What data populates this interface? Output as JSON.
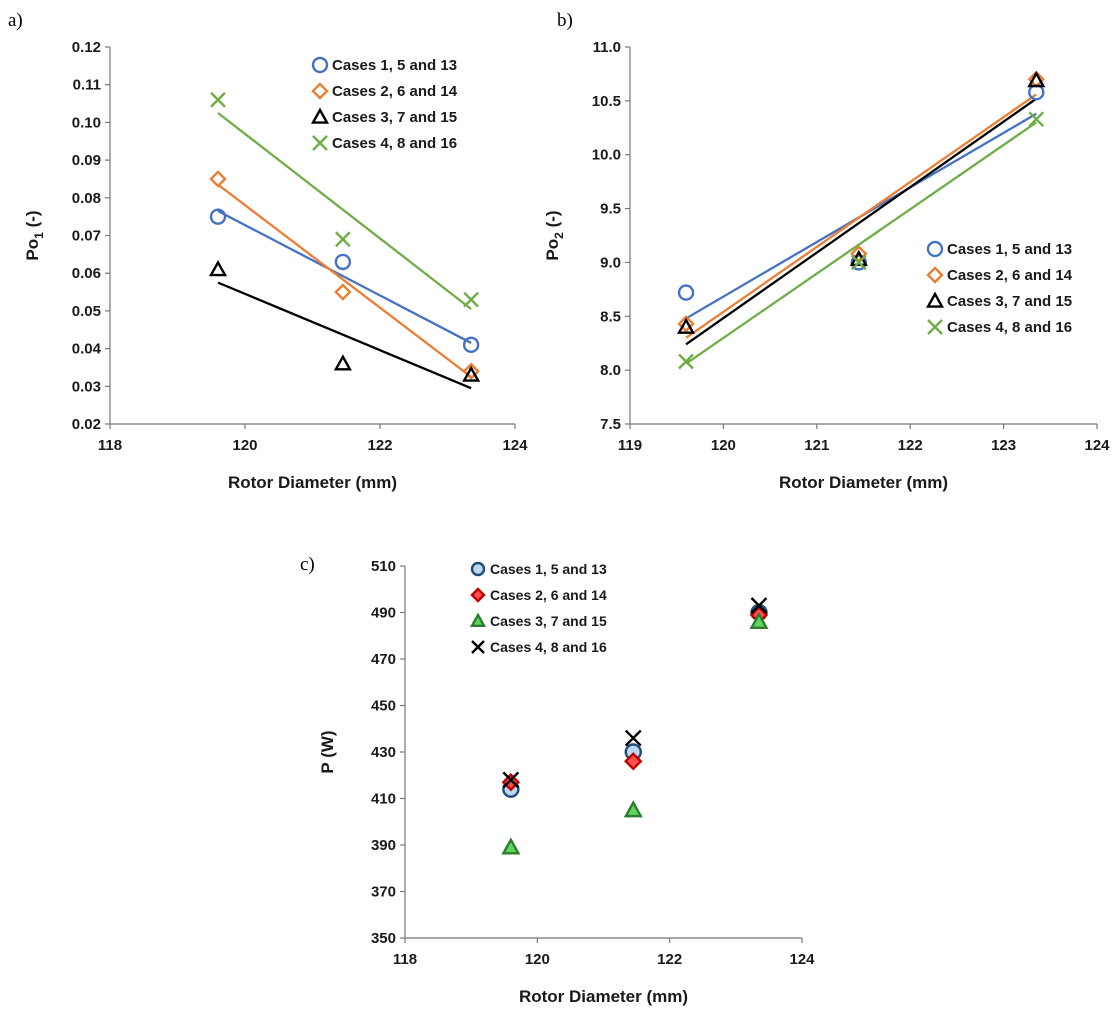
{
  "chart_data": [
    {
      "panel_label": "a)",
      "type": "scatter",
      "xlabel": "Rotor Diameter (mm)",
      "ylabel": "Po",
      "ylabel_sub": "1",
      "ylabel_suffix": " (-)",
      "xlim": [
        118,
        124
      ],
      "ylim": [
        0.02,
        0.12
      ],
      "xticks": [
        "118",
        "120",
        "122",
        "124"
      ],
      "yticks": [
        "0.02",
        "0.03",
        "0.04",
        "0.05",
        "0.06",
        "0.07",
        "0.08",
        "0.09",
        "0.10",
        "0.11",
        "0.12"
      ],
      "legend_position": "top-right",
      "series": [
        {
          "name": "Cases 1, 5 and 13",
          "color": "#4472C4",
          "marker": "circle",
          "x": [
            119.6,
            121.45,
            123.35
          ],
          "y": [
            0.075,
            0.063,
            0.041
          ],
          "trend": [
            [
              119.6,
              0.0765
            ],
            [
              123.35,
              0.0415
            ]
          ]
        },
        {
          "name": "Cases 2, 6 and 14",
          "color": "#ED7D31",
          "marker": "diamond",
          "x": [
            119.6,
            121.45,
            123.35
          ],
          "y": [
            0.085,
            0.055,
            0.034
          ],
          "trend": [
            [
              119.6,
              0.0835
            ],
            [
              123.35,
              0.0325
            ]
          ]
        },
        {
          "name": "Cases 3, 7 and 15",
          "color": "#000000",
          "marker": "triangle",
          "x": [
            119.6,
            121.45,
            123.35
          ],
          "y": [
            0.061,
            0.036,
            0.033
          ],
          "trend": [
            [
              119.6,
              0.0575
            ],
            [
              123.35,
              0.0295
            ]
          ]
        },
        {
          "name": "Cases 4, 8 and 16",
          "color": "#70AD47",
          "marker": "x",
          "x": [
            119.6,
            121.45,
            123.35
          ],
          "y": [
            0.106,
            0.069,
            0.053
          ],
          "trend": [
            [
              119.6,
              0.1025
            ],
            [
              123.35,
              0.0505
            ]
          ]
        }
      ]
    },
    {
      "panel_label": "b)",
      "type": "scatter",
      "xlabel": "Rotor Diameter (mm)",
      "ylabel": "Po",
      "ylabel_sub": "2",
      "ylabel_suffix": " (-)",
      "xlim": [
        119,
        124
      ],
      "ylim": [
        7.5,
        11.0
      ],
      "xticks": [
        "119",
        "120",
        "121",
        "122",
        "123",
        "124"
      ],
      "yticks": [
        "7.5",
        "8.0",
        "8.5",
        "9.0",
        "9.5",
        "10.0",
        "10.5",
        "11.0"
      ],
      "legend_position": "right",
      "series": [
        {
          "name": "Cases 1, 5 and 13",
          "color": "#4472C4",
          "marker": "circle",
          "x": [
            119.6,
            121.45,
            123.35
          ],
          "y": [
            8.72,
            9.0,
            10.58
          ],
          "trend": [
            [
              119.6,
              8.48
            ],
            [
              123.35,
              10.38
            ]
          ]
        },
        {
          "name": "Cases 2, 6 and 14",
          "color": "#ED7D31",
          "marker": "diamond",
          "x": [
            119.6,
            121.45,
            123.35
          ],
          "y": [
            8.43,
            9.08,
            10.7
          ],
          "trend": [
            [
              119.6,
              8.3
            ],
            [
              123.35,
              10.56
            ]
          ]
        },
        {
          "name": "Cases 3, 7 and 15",
          "color": "#000000",
          "marker": "triangle",
          "x": [
            119.6,
            121.45,
            123.35
          ],
          "y": [
            8.4,
            9.03,
            10.69
          ],
          "trend": [
            [
              119.6,
              8.24
            ],
            [
              123.35,
              10.52
            ]
          ]
        },
        {
          "name": "Cases 4, 8 and 16",
          "color": "#70AD47",
          "marker": "x",
          "x": [
            119.6,
            121.45,
            123.35
          ],
          "y": [
            8.08,
            9.0,
            10.33
          ],
          "trend": [
            [
              119.6,
              8.06
            ],
            [
              123.35,
              10.3
            ]
          ]
        }
      ]
    },
    {
      "panel_label": "c)",
      "type": "scatter",
      "xlabel": "Rotor Diameter (mm)",
      "ylabel": "P (W)",
      "xlim": [
        118,
        124
      ],
      "ylim": [
        350,
        510
      ],
      "xticks": [
        "118",
        "120",
        "122",
        "124"
      ],
      "yticks": [
        "350",
        "370",
        "390",
        "410",
        "430",
        "450",
        "470",
        "490",
        "510"
      ],
      "legend_position": "top-left",
      "series": [
        {
          "name": "Cases 1, 5 and 13",
          "color": "#1F4E79",
          "fill": "#BDD7EE",
          "marker": "circle",
          "x": [
            119.6,
            121.45,
            123.35
          ],
          "y": [
            414,
            430,
            490
          ]
        },
        {
          "name": "Cases 2, 6 and 14",
          "color": "#C00000",
          "fill": "#FF4F4F",
          "marker": "diamond",
          "x": [
            119.6,
            121.45,
            123.35
          ],
          "y": [
            417,
            426,
            489
          ]
        },
        {
          "name": "Cases 3, 7 and 15",
          "color": "#2E7D32",
          "fill": "#5CD65C",
          "marker": "triangle",
          "x": [
            119.6,
            121.45,
            123.35
          ],
          "y": [
            389,
            405,
            486
          ]
        },
        {
          "name": "Cases 4, 8 and 16",
          "color": "#000000",
          "marker": "x",
          "x": [
            119.6,
            121.45,
            123.35
          ],
          "y": [
            418,
            436,
            493
          ]
        }
      ]
    }
  ]
}
